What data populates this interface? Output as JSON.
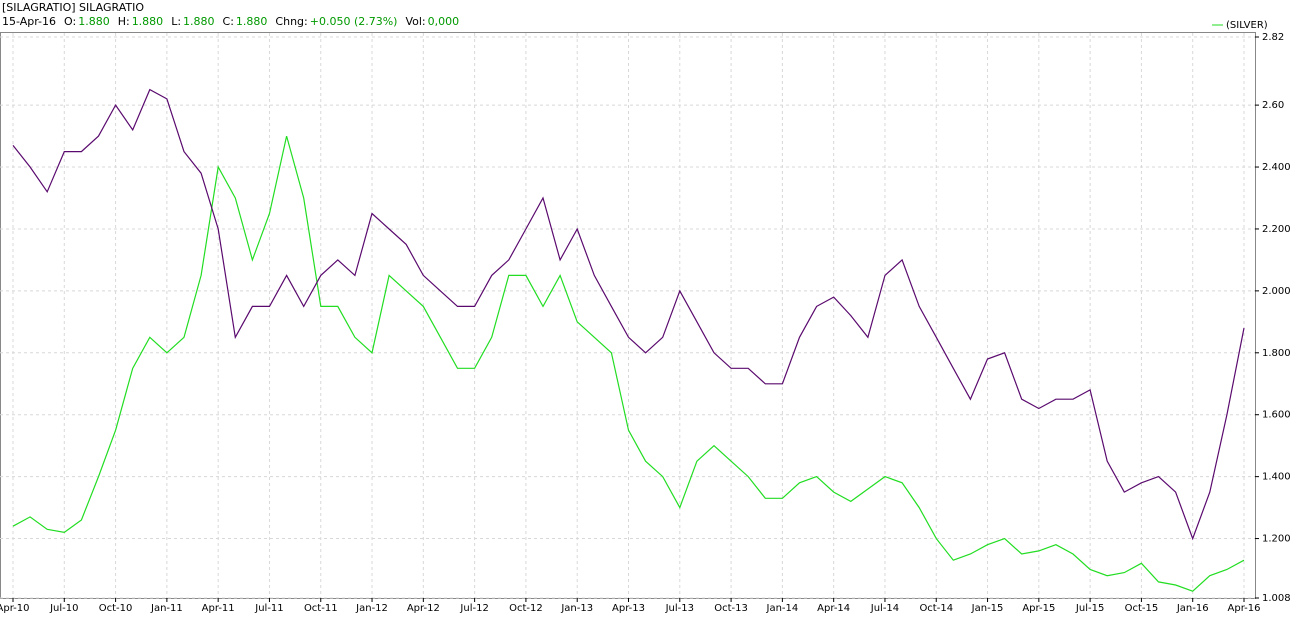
{
  "header": {
    "symbol": "[SILAGRATIO] SILAGRATIO",
    "date": "15-Apr-16",
    "fields": [
      {
        "label": "O:",
        "value": "1.880"
      },
      {
        "label": "H:",
        "value": "1.880"
      },
      {
        "label": "L:",
        "value": "1.880"
      },
      {
        "label": "C:",
        "value": "1.880"
      },
      {
        "label": "Chng:",
        "value": "+0.050 (2.73%)"
      },
      {
        "label": "Vol:",
        "value": "0,000"
      }
    ]
  },
  "chart_data": {
    "type": "line",
    "x": [
      "Apr-10",
      "May-10",
      "Jun-10",
      "Jul-10",
      "Aug-10",
      "Sep-10",
      "Oct-10",
      "Nov-10",
      "Dec-10",
      "Jan-11",
      "Feb-11",
      "Mar-11",
      "Apr-11",
      "May-11",
      "Jun-11",
      "Jul-11",
      "Aug-11",
      "Sep-11",
      "Oct-11",
      "Nov-11",
      "Dec-11",
      "Jan-12",
      "Feb-12",
      "Mar-12",
      "Apr-12",
      "May-12",
      "Jun-12",
      "Jul-12",
      "Aug-12",
      "Sep-12",
      "Oct-12",
      "Nov-12",
      "Dec-12",
      "Jan-13",
      "Feb-13",
      "Mar-13",
      "Apr-13",
      "May-13",
      "Jun-13",
      "Jul-13",
      "Aug-13",
      "Sep-13",
      "Oct-13",
      "Nov-13",
      "Dec-13",
      "Jan-14",
      "Feb-14",
      "Mar-14",
      "Apr-14",
      "May-14",
      "Jun-14",
      "Jul-14",
      "Aug-14",
      "Sep-14",
      "Oct-14",
      "Nov-14",
      "Dec-14",
      "Jan-15",
      "Feb-15",
      "Mar-15",
      "Apr-15",
      "May-15",
      "Jun-15",
      "Jul-15",
      "Aug-15",
      "Sep-15",
      "Oct-15",
      "Nov-15",
      "Dec-15",
      "Jan-16",
      "Feb-16",
      "Mar-16",
      "Apr-16"
    ],
    "series": [
      {
        "color": "#5a0a6e",
        "values": [
          2.47,
          2.4,
          2.32,
          2.45,
          2.45,
          2.5,
          2.6,
          2.52,
          2.65,
          2.62,
          2.45,
          2.38,
          2.2,
          1.85,
          1.95,
          1.95,
          2.05,
          1.95,
          2.05,
          2.1,
          2.05,
          2.25,
          2.2,
          2.15,
          2.05,
          2.0,
          1.95,
          1.95,
          2.05,
          2.1,
          2.2,
          2.3,
          2.1,
          2.2,
          2.05,
          1.95,
          1.85,
          1.8,
          1.85,
          2.0,
          1.9,
          1.8,
          1.75,
          1.75,
          1.7,
          1.7,
          1.85,
          1.95,
          1.98,
          1.92,
          1.85,
          2.05,
          2.1,
          1.95,
          1.85,
          1.75,
          1.65,
          1.78,
          1.8,
          1.65,
          1.62,
          1.65,
          1.65,
          1.68,
          1.45,
          1.35,
          1.38,
          1.4,
          1.35,
          1.2,
          1.35,
          1.6,
          1.88
        ]
      },
      {
        "name": "(SILVER)",
        "color": "#22dd22",
        "values": [
          1.24,
          1.27,
          1.23,
          1.22,
          1.26,
          1.4,
          1.55,
          1.75,
          1.85,
          1.8,
          1.85,
          2.05,
          2.4,
          2.3,
          2.1,
          2.25,
          2.5,
          2.3,
          1.95,
          1.95,
          1.85,
          1.8,
          2.05,
          2.0,
          1.95,
          1.85,
          1.75,
          1.75,
          1.85,
          2.05,
          2.05,
          1.95,
          2.05,
          1.9,
          1.85,
          1.8,
          1.55,
          1.45,
          1.4,
          1.3,
          1.45,
          1.5,
          1.45,
          1.4,
          1.33,
          1.33,
          1.38,
          1.4,
          1.35,
          1.32,
          1.36,
          1.4,
          1.38,
          1.3,
          1.2,
          1.13,
          1.15,
          1.18,
          1.2,
          1.15,
          1.16,
          1.18,
          1.15,
          1.1,
          1.08,
          1.09,
          1.12,
          1.06,
          1.05,
          1.03,
          1.08,
          1.1,
          1.13
        ]
      }
    ],
    "ylim": [
      1.008,
      2.82
    ],
    "yticks": [
      2.82,
      {
        "value": 2.6,
        "label": "2.60"
      },
      {
        "value": 2.4,
        "label": "2.400"
      },
      {
        "value": 2.2,
        "label": "2.200"
      },
      {
        "value": 2.0,
        "label": "2.000"
      },
      {
        "value": 1.8,
        "label": "1.800"
      },
      {
        "value": 1.6,
        "label": "1.600"
      },
      {
        "value": 1.4,
        "label": "1.400"
      },
      {
        "value": 1.2,
        "label": "1.200"
      },
      1.008
    ],
    "grid": true
  }
}
